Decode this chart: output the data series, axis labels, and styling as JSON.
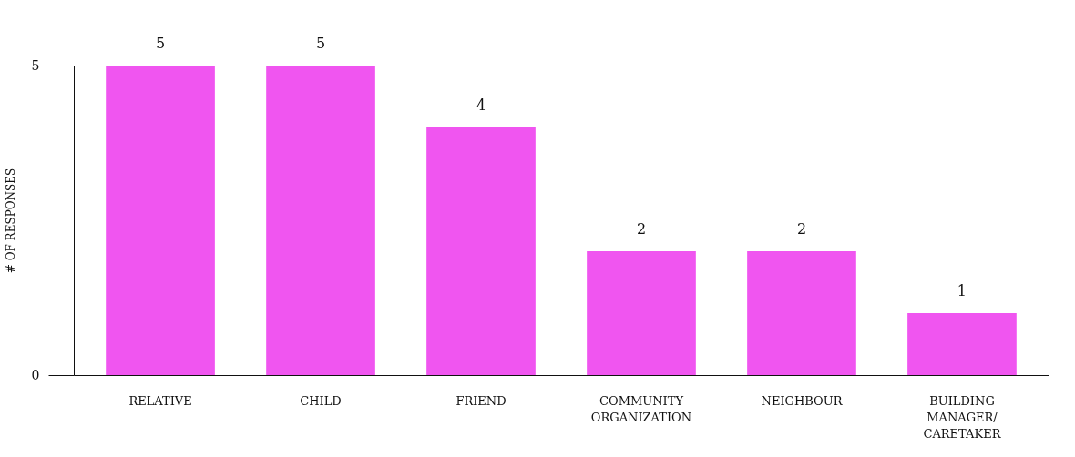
{
  "chart_data": {
    "type": "bar",
    "ylabel": "# OF RESPONSES",
    "categories": [
      "RELATIVE",
      "CHILD",
      "FRIEND",
      "COMMUNITY ORGANIZATION",
      "NEIGHBOUR",
      "BUILDING MANAGER/ CARETAKER"
    ],
    "values": [
      5,
      5,
      4,
      2,
      2,
      1
    ],
    "color": "#f055f0",
    "ylim": [
      0,
      5
    ],
    "yticks": [
      0,
      5
    ],
    "grid": false,
    "data_labels": true
  }
}
